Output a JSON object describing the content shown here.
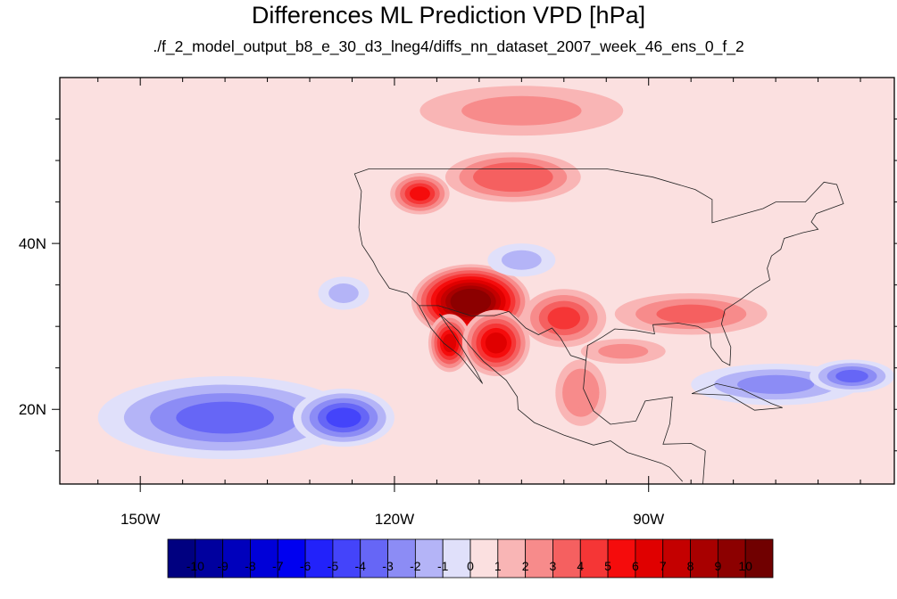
{
  "title": "Differences ML Prediction VPD [hPa]",
  "subtitle": "./f_2_model_output_b8_e_30_d3_lneg4/diffs_nn_dataset_2007_week_46_ens_0_f_2",
  "map": {
    "lon_range": [
      -159.5,
      -61
    ],
    "lat_range": [
      11,
      60
    ],
    "x_ticks": [
      {
        "lon": -150,
        "label": "150W"
      },
      {
        "lon": -120,
        "label": "120W"
      },
      {
        "lon": -90,
        "label": "90W"
      }
    ],
    "y_ticks": [
      {
        "lat": 20,
        "label": "20N"
      },
      {
        "lat": 40,
        "label": "40N"
      }
    ],
    "background_value": 0.7
  },
  "colorbar": {
    "labels": [
      "-10",
      "-9",
      "-8",
      "-7",
      "-6",
      "-5",
      "-4",
      "-3",
      "-2",
      "-1",
      "0",
      "1",
      "2",
      "3",
      "4",
      "5",
      "6",
      "7",
      "8",
      "9",
      "10"
    ],
    "colors": [
      "#000080",
      "#00009e",
      "#0000bc",
      "#0000d8",
      "#0000f0",
      "#2222fa",
      "#4444fa",
      "#6666f6",
      "#8c8cf5",
      "#b4b4f7",
      "#e0e0fa",
      "#fbe0e0",
      "#f9b5b5",
      "#f78b8b",
      "#f56060",
      "#f53636",
      "#f50c0c",
      "#e00000",
      "#c40000",
      "#a80000",
      "#8c0000",
      "#700000"
    ]
  },
  "anomalies": [
    {
      "name": "southwest",
      "lon": -111,
      "lat": 33,
      "rx": 7,
      "ry": 4.5,
      "value": 9.5
    },
    {
      "name": "baja",
      "lon": -113.5,
      "lat": 28,
      "rx": 2.5,
      "ry": 3.5,
      "value": 6
    },
    {
      "name": "west-mexico",
      "lon": -108,
      "lat": 28,
      "rx": 4,
      "ry": 4,
      "value": 6
    },
    {
      "name": "texas",
      "lon": -100,
      "lat": 31,
      "rx": 5,
      "ry": 3.5,
      "value": 4
    },
    {
      "name": "northwest",
      "lon": -117,
      "lat": 46,
      "rx": 3.5,
      "ry": 2.5,
      "value": 5
    },
    {
      "name": "northern-plains",
      "lon": -106,
      "lat": 48,
      "rx": 8,
      "ry": 3,
      "value": 3.5
    },
    {
      "name": "southeast",
      "lon": -85,
      "lat": 31.5,
      "rx": 9,
      "ry": 2.5,
      "value": 3
    },
    {
      "name": "canada",
      "lon": -105,
      "lat": 56,
      "rx": 12,
      "ry": 3,
      "value": 2
    },
    {
      "name": "east-mexico",
      "lon": -98,
      "lat": 22,
      "rx": 3,
      "ry": 4,
      "value": 2.5
    },
    {
      "name": "gulf",
      "lon": -93,
      "lat": 27,
      "rx": 5,
      "ry": 1.5,
      "value": 2
    },
    {
      "name": "pacific-south",
      "lon": -140,
      "lat": 19,
      "rx": 15,
      "ry": 5,
      "value": -3.5
    },
    {
      "name": "pacific-core",
      "lon": -126,
      "lat": 19,
      "rx": 6,
      "ry": 3.5,
      "value": -4.5
    },
    {
      "name": "caribbean",
      "lon": -75,
      "lat": 23,
      "rx": 10,
      "ry": 2.5,
      "value": -3
    },
    {
      "name": "atlantic",
      "lon": -66,
      "lat": 24,
      "rx": 5,
      "ry": 2,
      "value": -3.5
    },
    {
      "name": "colorado",
      "lon": -105,
      "lat": 38,
      "rx": 4,
      "ry": 2,
      "value": -1.5
    },
    {
      "name": "pacific-offshore",
      "lon": -126,
      "lat": 34,
      "rx": 3,
      "ry": 2,
      "value": -2
    }
  ]
}
